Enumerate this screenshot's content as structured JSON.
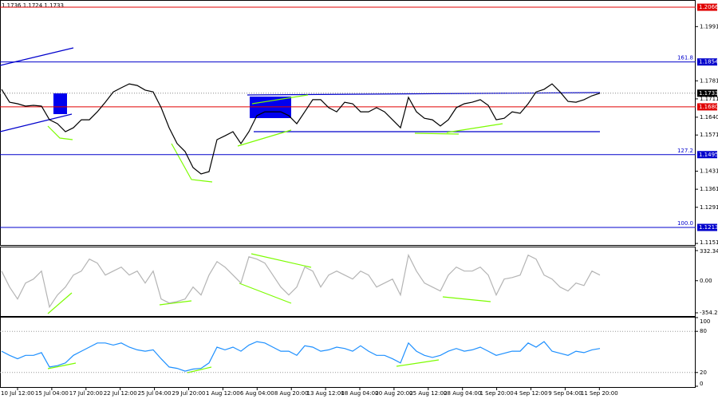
{
  "chart_data": [
    {
      "type": "line",
      "header": "1.1736 1.1724 1.1733",
      "color": "#000000",
      "values": [
        1.1748,
        1.1698,
        1.1692,
        1.1683,
        1.1686,
        1.1683,
        1.163,
        1.1615,
        1.1584,
        1.1599,
        1.163,
        1.163,
        1.1661,
        1.1698,
        1.1738,
        1.1754,
        1.1769,
        1.1763,
        1.1745,
        1.1738,
        1.1677,
        1.1599,
        1.1538,
        1.1507,
        1.1445,
        1.142,
        1.1429,
        1.1553,
        1.1568,
        1.1584,
        1.1538,
        1.1584,
        1.1646,
        1.1661,
        1.1661,
        1.1661,
        1.1646,
        1.1615,
        1.1661,
        1.1708,
        1.1708,
        1.1677,
        1.1661,
        1.1698,
        1.1692,
        1.1661,
        1.1661,
        1.1677,
        1.1661,
        1.163,
        1.1599,
        1.1717,
        1.1661,
        1.1636,
        1.163,
        1.1606,
        1.163,
        1.1677,
        1.1692,
        1.1698,
        1.1708,
        1.1686,
        1.163,
        1.1636,
        1.1661,
        1.1655,
        1.1692,
        1.1738,
        1.1748,
        1.1769,
        1.1738,
        1.1701,
        1.1698,
        1.1708,
        1.1723,
        1.1733
      ],
      "ylim": [
        1.1145,
        1.2094
      ],
      "yticks": [
        {
          "value": 1.1991,
          "label": "1.1991"
        },
        {
          "value": 1.1781,
          "label": "1.1781"
        },
        {
          "value": 1.1711,
          "label": "1.1711"
        },
        {
          "value": 1.164,
          "label": "1.1640"
        },
        {
          "value": 1.1571,
          "label": "1.1571"
        },
        {
          "value": 1.1431,
          "label": "1.1431"
        },
        {
          "value": 1.1361,
          "label": "1.1361"
        },
        {
          "value": 1.1291,
          "label": "1.1291"
        },
        {
          "value": 1.1151,
          "label": "1.1151"
        }
      ],
      "levels": [
        {
          "value": 1.2066,
          "label": "1.2066",
          "color": "#e00000"
        },
        {
          "value": 1.1854,
          "label": "1.1854",
          "color": "#0000cc",
          "fib_label": "161.8"
        },
        {
          "value": 1.168,
          "label": "1.1680",
          "color": "#e00000"
        },
        {
          "value": 1.1495,
          "label": "1.1495",
          "color": "#0000cc",
          "fib_label": "127.2"
        },
        {
          "value": 1.1213,
          "label": "1.1213",
          "color": "#0000cc",
          "fib_label": "100.0"
        }
      ],
      "current": {
        "value": 1.1733,
        "label": "1.1733",
        "color": "#000000"
      }
    },
    {
      "type": "line",
      "color": "#b4b4b4",
      "values": [
        106,
        -70,
        -202,
        -26,
        18,
        106,
        -290,
        -158,
        -70,
        62,
        106,
        238,
        194,
        62,
        106,
        150,
        62,
        106,
        -26,
        106,
        -202,
        -246,
        -229,
        -202,
        -70,
        -158,
        62,
        211,
        150,
        62,
        -26,
        264,
        238,
        194,
        62,
        -70,
        -158,
        -70,
        150,
        106,
        -70,
        62,
        106,
        62,
        18,
        106,
        62,
        -70,
        -26,
        18,
        -158,
        282,
        106,
        -26,
        -70,
        -114,
        62,
        150,
        106,
        106,
        150,
        62,
        -158,
        18,
        35,
        62,
        282,
        238,
        62,
        18,
        -70,
        -114,
        -26,
        -53,
        106,
        62
      ],
      "ylim": [
        -389.5,
        367.6
      ],
      "yticks": [
        332.3467,
        {
          "value": 0,
          "label": "0.00"
        },
        -354.279
      ]
    },
    {
      "type": "line",
      "color": "#1e90ff",
      "values": [
        51,
        45,
        40,
        45,
        45,
        49,
        28,
        30,
        34,
        45,
        51,
        57,
        63,
        63,
        60,
        63,
        57,
        53,
        51,
        53,
        40,
        28,
        26,
        22,
        25,
        26,
        34,
        57,
        53,
        57,
        51,
        60,
        65,
        63,
        57,
        51,
        51,
        45,
        59,
        57,
        51,
        53,
        57,
        55,
        51,
        59,
        51,
        45,
        45,
        40,
        34,
        63,
        51,
        45,
        42,
        45,
        51,
        55,
        51,
        53,
        57,
        51,
        45,
        48,
        51,
        51,
        63,
        57,
        65,
        51,
        48,
        45,
        51,
        49,
        53,
        55
      ],
      "ylim": [
        0,
        100
      ],
      "yticks": [
        100,
        80,
        20,
        0
      ],
      "xtick_labels": [
        "10 Jul 12:00",
        "15 Jul 04:00",
        "17 Jul 20:00",
        "22 Jul 12:00",
        "25 Jul 04:00",
        "29 Jul 20:00",
        "1 Aug 12:00",
        "6 Aug 04:00",
        "8 Aug 20:00",
        "13 Aug 12:00",
        "18 Aug 04:00",
        "20 Aug 20:00",
        "25 Aug 12:00",
        "28 Aug 04:00",
        "1 Sep 20:00",
        "4 Sep 12:00",
        "9 Sep 04:00",
        "11 Sep 20:00"
      ]
    }
  ]
}
